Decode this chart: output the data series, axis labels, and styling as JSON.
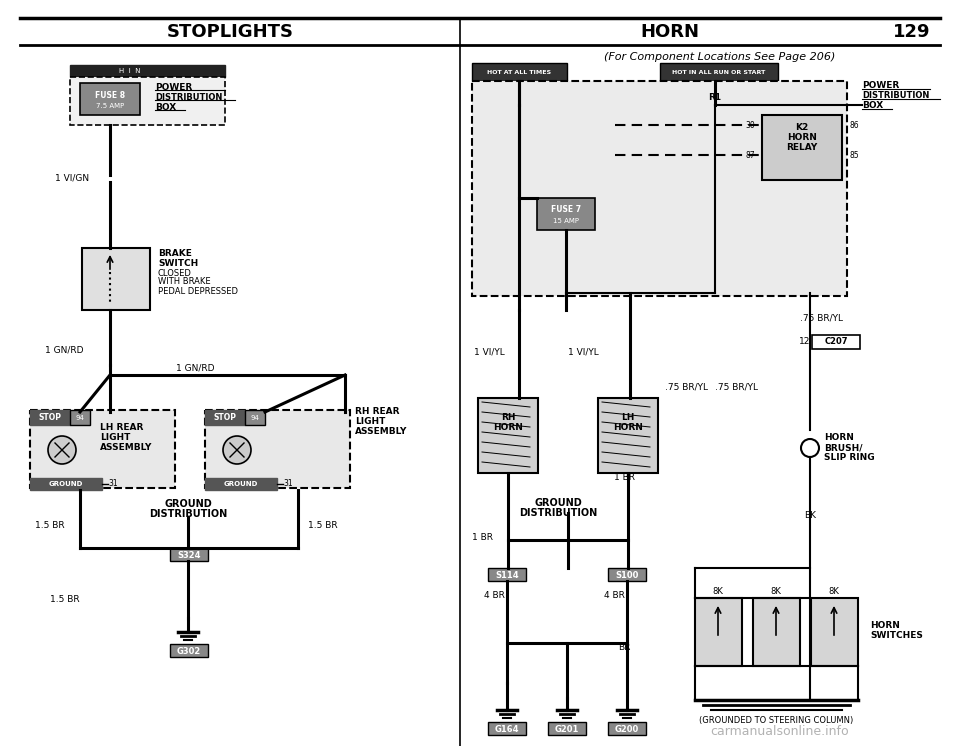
{
  "title_left": "STOPLIGHTS",
  "title_right": "HORN",
  "page_number": "129",
  "subtitle": "(For Component Locations See Page 206)",
  "background": "#ffffff",
  "watermark": "carmanualsonline.info"
}
